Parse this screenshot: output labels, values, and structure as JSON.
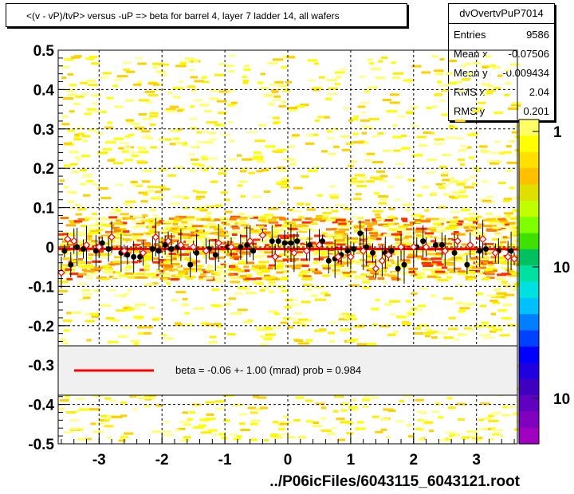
{
  "title": "<(v - vP)/tvP> versus  -uP => beta for barrel 4, layer 7 ladder 14, all wafers",
  "stats": {
    "name": "dvOvertvPuP7014",
    "rows": [
      {
        "label": "Entries",
        "value": "9586"
      },
      {
        "label": "Mean x",
        "value": "-0.07506"
      },
      {
        "label": "Mean y",
        "value": "-0.009434"
      },
      {
        "label": "RMS x",
        "value": "2.04"
      },
      {
        "label": "RMS y",
        "value": "0.201"
      }
    ]
  },
  "xlabel": "../P06icFiles/6043115_6043121.root",
  "legend": {
    "text": "beta =   -0.06 +-   1.00 (mrad) prob = 0.984",
    "line_color": "#ff0000"
  },
  "colorbar": {
    "tick_labels": [
      "1",
      "10",
      "10"
    ],
    "colors": [
      "#ffff66",
      "#ffff00",
      "#ffe000",
      "#ffc000",
      "#e0e000",
      "#c0ff00",
      "#80ff00",
      "#40e000",
      "#00c060",
      "#00e0a0",
      "#00e0e0",
      "#00c0ff",
      "#0080ff",
      "#0040ff",
      "#0000ff",
      "#2000e0",
      "#4000c0",
      "#6000c0",
      "#8000c0",
      "#a000c0"
    ]
  },
  "chart_data": {
    "type": "scatter",
    "title": "<(v - vP)/tvP> versus  -uP => beta for barrel 4, layer 7 ladder 14, all wafers",
    "xlabel": "../P06icFiles/6043115_6043121.root",
    "ylabel": "",
    "xlim": [
      -3.65,
      3.65
    ],
    "ylim": [
      -0.5,
      0.5
    ],
    "x_ticks": [
      -3,
      -2,
      -1,
      0,
      1,
      2,
      3
    ],
    "y_ticks": [
      -0.5,
      -0.4,
      -0.3,
      -0.2,
      -0.1,
      0,
      0.1,
      0.2,
      0.3,
      0.4,
      0.5
    ],
    "grid": true,
    "fit_line": {
      "slope": -6e-05,
      "intercept": -0.005,
      "color": "#ff0000"
    },
    "series": [
      {
        "marker": "filled-circle",
        "color": "#000000",
        "x": [
          -3.55,
          -3.45,
          -3.35,
          -3.25,
          -3.05,
          -2.95,
          -2.85,
          -2.65,
          -2.55,
          -2.45,
          -2.35,
          -2.15,
          -2.05,
          -1.95,
          -1.85,
          -1.75,
          -1.55,
          -1.45,
          -1.25,
          -1.15,
          -0.95,
          -0.75,
          -0.65,
          -0.55,
          -0.25,
          -0.15,
          -0.05,
          0.05,
          0.15,
          0.35,
          0.55,
          0.65,
          0.75,
          0.85,
          0.95,
          1.05,
          1.15,
          1.25,
          1.35,
          1.55,
          1.65,
          1.75,
          1.85,
          2.05,
          2.15,
          2.35,
          2.45,
          2.65,
          2.85,
          3.05,
          3.15,
          3.35,
          3.55
        ],
        "y": [
          -0.01,
          -0.045,
          0.0,
          -0.005,
          -0.01,
          0.01,
          -0.005,
          -0.015,
          -0.02,
          -0.025,
          -0.025,
          -0.005,
          -0.01,
          0.005,
          -0.005,
          0.0,
          -0.045,
          -0.015,
          -0.005,
          -0.02,
          0.0,
          0.0,
          0.005,
          -0.01,
          0.015,
          0.015,
          0.01,
          0.01,
          0.015,
          0.005,
          0.015,
          -0.035,
          -0.03,
          -0.02,
          -0.01,
          -0.005,
          0.035,
          0.0,
          -0.015,
          -0.015,
          -0.01,
          -0.055,
          -0.045,
          0.0,
          0.015,
          0.005,
          0.005,
          -0.015,
          -0.045,
          -0.01,
          -0.005,
          -0.01,
          -0.01
        ]
      },
      {
        "marker": "open-diamond",
        "color": "#ff0000",
        "x": [
          -3.6,
          -3.5,
          -3.4,
          -3.2,
          -3.0,
          -2.8,
          -2.6,
          -2.3,
          -2.1,
          -1.9,
          -1.7,
          -1.5,
          -1.3,
          -1.1,
          -0.9,
          -0.6,
          -0.4,
          -0.2,
          0.1,
          0.3,
          0.5,
          0.8,
          1.0,
          1.2,
          1.4,
          1.5,
          1.6,
          1.8,
          2.0,
          2.2,
          2.5,
          2.7,
          2.9,
          3.1,
          3.3,
          3.5,
          3.6
        ],
        "y": [
          -0.065,
          0.02,
          0.015,
          0.005,
          0.0,
          0.025,
          -0.01,
          -0.015,
          0.025,
          0.015,
          0.005,
          0.0,
          -0.01,
          0.01,
          0.0,
          0.015,
          0.03,
          -0.025,
          -0.015,
          -0.01,
          0.005,
          -0.025,
          -0.025,
          -0.01,
          -0.055,
          -0.035,
          -0.02,
          0.0,
          0.0,
          0.0,
          -0.01,
          0.015,
          0.005,
          0.02,
          -0.015,
          -0.025,
          -0.03
        ]
      }
    ]
  }
}
